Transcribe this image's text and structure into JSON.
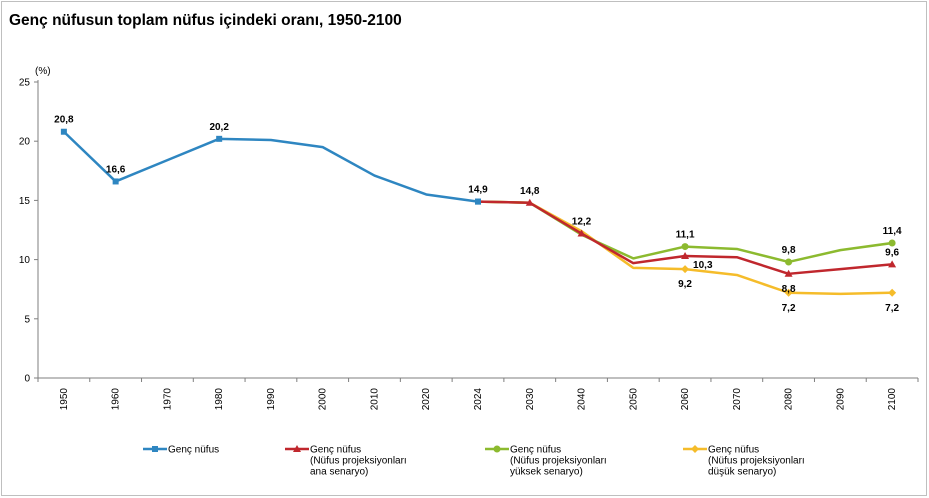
{
  "title": "Genç nüfusun toplam nüfus içindeki oranı, 1950-2100",
  "chart_data": {
    "type": "line",
    "title": "Genç nüfusun toplam nüfus içindeki oranı, 1950-2100",
    "ylabel": "(%)",
    "xlabel": "",
    "ylim": [
      0,
      25
    ],
    "y_ticks": [
      "0",
      "5",
      "10",
      "15",
      "20",
      "25"
    ],
    "categories": [
      "1950",
      "1960",
      "1970",
      "1980",
      "1990",
      "2000",
      "2010",
      "2020",
      "2024",
      "2030",
      "2040",
      "2050",
      "2060",
      "2070",
      "2080",
      "2090",
      "2100"
    ],
    "grid": false,
    "legend_position": "bottom",
    "series": [
      {
        "name": "Genç nüfus",
        "name_lines": [
          "Genç nüfus"
        ],
        "color": "#2e86c1",
        "marker": "square",
        "points": [
          {
            "x": "1950",
            "y": 20.8,
            "label": "20,8",
            "pos": "above"
          },
          {
            "x": "1960",
            "y": 16.6,
            "label": "16,6",
            "pos": "above"
          },
          {
            "x": "1970",
            "y": 18.4
          },
          {
            "x": "1980",
            "y": 20.2,
            "label": "20,2",
            "pos": "above"
          },
          {
            "x": "1990",
            "y": 20.1
          },
          {
            "x": "2000",
            "y": 19.5
          },
          {
            "x": "2010",
            "y": 17.1
          },
          {
            "x": "2020",
            "y": 15.5
          },
          {
            "x": "2024",
            "y": 14.9,
            "label": "14,9",
            "pos": "above"
          }
        ]
      },
      {
        "name": "Genç nüfus (Nüfus projeksiyonları ana senaryo)",
        "name_lines": [
          "Genç nüfus",
          "(Nüfus projeksiyonları",
          "ana senaryo)"
        ],
        "color": "#c0272d",
        "marker": "triangle",
        "points": [
          {
            "x": "2024",
            "y": 14.9
          },
          {
            "x": "2030",
            "y": 14.8,
            "label": "14,8",
            "pos": "above"
          },
          {
            "x": "2040",
            "y": 12.2,
            "label": "12,2",
            "pos": "above"
          },
          {
            "x": "2050",
            "y": 9.7
          },
          {
            "x": "2060",
            "y": 10.3,
            "label": "10,3",
            "pos": "right"
          },
          {
            "x": "2070",
            "y": 10.2
          },
          {
            "x": "2080",
            "y": 8.8,
            "label": "8,8",
            "pos": "below"
          },
          {
            "x": "2090",
            "y": 9.2
          },
          {
            "x": "2100",
            "y": 9.6,
            "label": "9,6",
            "pos": "above"
          }
        ]
      },
      {
        "name": "Genç nüfus (Nüfus projeksiyonları yüksek senaryo)",
        "name_lines": [
          "Genç nüfus",
          "(Nüfus projeksiyonları",
          "yüksek senaryo)"
        ],
        "color": "#8cba2f",
        "marker": "circle",
        "points": [
          {
            "x": "2024",
            "y": 14.9
          },
          {
            "x": "2030",
            "y": 14.8
          },
          {
            "x": "2040",
            "y": 12.1
          },
          {
            "x": "2050",
            "y": 10.1
          },
          {
            "x": "2060",
            "y": 11.1,
            "label": "11,1",
            "pos": "above"
          },
          {
            "x": "2070",
            "y": 10.9
          },
          {
            "x": "2080",
            "y": 9.8,
            "label": "9,8",
            "pos": "above"
          },
          {
            "x": "2090",
            "y": 10.8
          },
          {
            "x": "2100",
            "y": 11.4,
            "label": "11,4",
            "pos": "above"
          }
        ]
      },
      {
        "name": "Genç nüfus (Nüfus projeksiyonları düşük senaryo)",
        "name_lines": [
          "Genç nüfus",
          "(Nüfus projeksiyonları",
          "düşük senaryo)"
        ],
        "color": "#f5bc2a",
        "marker": "diamond",
        "points": [
          {
            "x": "2024",
            "y": 14.9
          },
          {
            "x": "2030",
            "y": 14.8
          },
          {
            "x": "2040",
            "y": 12.4
          },
          {
            "x": "2050",
            "y": 9.3
          },
          {
            "x": "2060",
            "y": 9.2,
            "label": "9,2",
            "pos": "below"
          },
          {
            "x": "2070",
            "y": 8.7
          },
          {
            "x": "2080",
            "y": 7.2,
            "label": "7,2",
            "pos": "below"
          },
          {
            "x": "2090",
            "y": 7.1
          },
          {
            "x": "2100",
            "y": 7.2,
            "label": "7,2",
            "pos": "below"
          }
        ]
      }
    ]
  }
}
